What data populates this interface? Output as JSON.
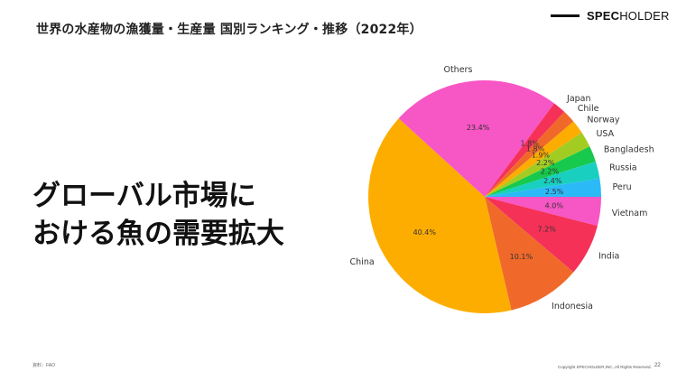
{
  "slide": {
    "title": "世界の水産物の漁獲量・生産量 国別ランキング・推移（2022年）",
    "brand_bold": "SPEC",
    "brand_rest": "HOLDER",
    "headline_line1": "グローバル市場に",
    "headline_line2": "おける魚の需要拡大",
    "source": "資料：FAO",
    "copyright": "Copyright SPECHOLDER,INC.,All Rights Reserved.",
    "page_number": "22"
  },
  "chart_data": {
    "type": "pie",
    "title": "",
    "start_angle_deg": 0,
    "direction": "clockwise",
    "slices": [
      {
        "label": "Vietnam",
        "value": 4.0,
        "pct_label": "4.0%",
        "color": "#f756c5"
      },
      {
        "label": "India",
        "value": 7.2,
        "pct_label": "7.2%",
        "color": "#f53158"
      },
      {
        "label": "Indonesia",
        "value": 10.1,
        "pct_label": "10.1%",
        "color": "#f0692a"
      },
      {
        "label": "China",
        "value": 40.4,
        "pct_label": "40.4%",
        "color": "#fdad00"
      },
      {
        "label": "Others",
        "value": 23.4,
        "pct_label": "23.4%",
        "color": "#f756c5"
      },
      {
        "label": "Japan",
        "value": 1.8,
        "pct_label": "1.8%",
        "color": "#f53158"
      },
      {
        "label": "Chile",
        "value": 1.8,
        "pct_label": "1.8%",
        "color": "#f0692a"
      },
      {
        "label": "Norway",
        "value": 1.9,
        "pct_label": "1.9%",
        "color": "#fdad00"
      },
      {
        "label": "USA",
        "value": 2.2,
        "pct_label": "2.2%",
        "color": "#a3cc23"
      },
      {
        "label": "Bangladesh",
        "value": 2.2,
        "pct_label": "2.2%",
        "color": "#17c94c"
      },
      {
        "label": "Russia",
        "value": 2.4,
        "pct_label": "2.4%",
        "color": "#19cfc0"
      },
      {
        "label": "Peru",
        "value": 2.5,
        "pct_label": "2.5%",
        "color": "#2bb9f7"
      }
    ]
  }
}
